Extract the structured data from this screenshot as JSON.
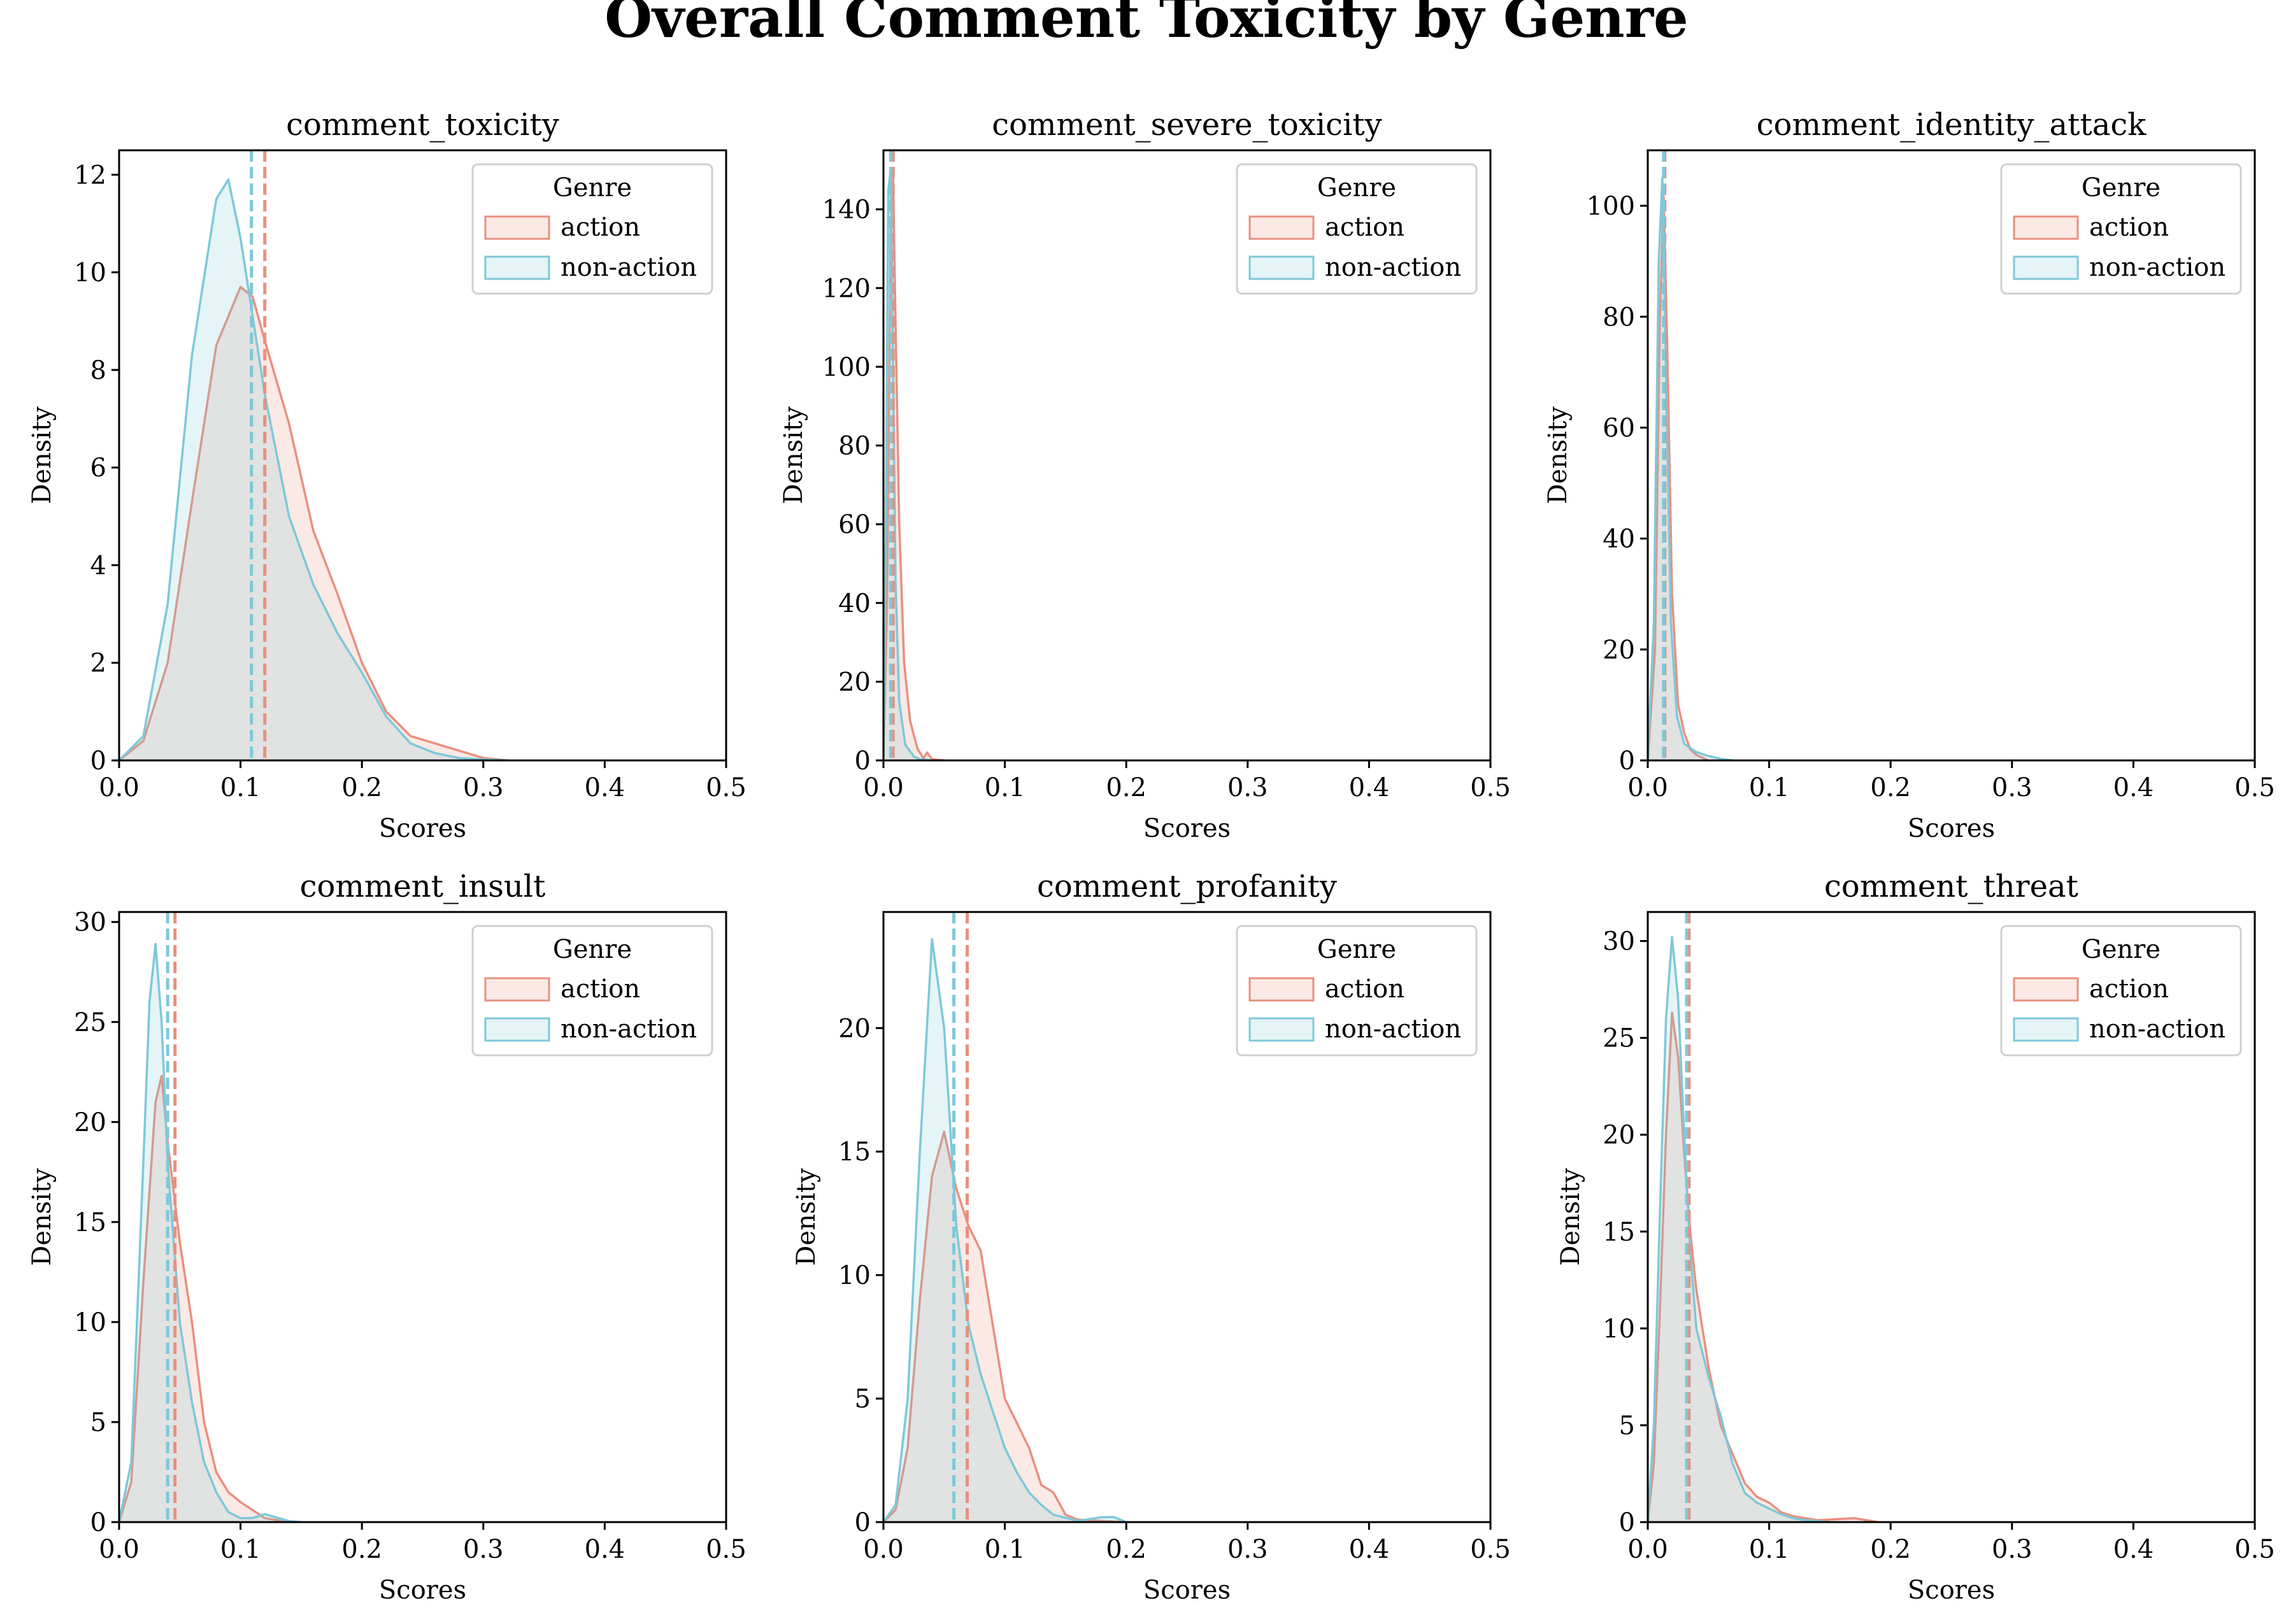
{
  "figure_title": "Overall Comment Toxicity by Genre",
  "colors": {
    "action": "#e8907f",
    "non_action": "#7ec8d9"
  },
  "chart_data": [
    {
      "type": "area",
      "title": "comment_toxicity",
      "xlabel": "Scores",
      "ylabel": "Density",
      "xlim": [
        0,
        0.5
      ],
      "ylim": [
        0,
        12.5
      ],
      "xticks": [
        0.0,
        0.1,
        0.2,
        0.3,
        0.4,
        0.5
      ],
      "xtick_labels": [
        "0.0",
        "0.1",
        "0.2",
        "0.3",
        "0.4",
        "0.5"
      ],
      "yticks": [
        0,
        2,
        4,
        6,
        8,
        10,
        12
      ],
      "ytick_labels": [
        "0",
        "2",
        "4",
        "6",
        "8",
        "10",
        "12"
      ],
      "legend": {
        "title": "Genre",
        "position": "top-right"
      },
      "series": [
        {
          "name": "action",
          "mean": 0.12,
          "x": [
            0,
            0.02,
            0.04,
            0.06,
            0.08,
            0.1,
            0.11,
            0.12,
            0.14,
            0.16,
            0.18,
            0.2,
            0.22,
            0.24,
            0.26,
            0.28,
            0.3,
            0.32
          ],
          "y": [
            0,
            0.4,
            2.0,
            5.3,
            8.5,
            9.7,
            9.5,
            8.6,
            6.9,
            4.7,
            3.4,
            2.0,
            1.0,
            0.5,
            0.35,
            0.2,
            0.05,
            0
          ]
        },
        {
          "name": "non-action",
          "mean": 0.109,
          "x": [
            0,
            0.02,
            0.04,
            0.06,
            0.08,
            0.09,
            0.1,
            0.12,
            0.14,
            0.16,
            0.18,
            0.2,
            0.22,
            0.24,
            0.26,
            0.28,
            0.3,
            0.32
          ],
          "y": [
            0,
            0.5,
            3.2,
            8.3,
            11.5,
            11.9,
            10.7,
            7.5,
            5.0,
            3.6,
            2.6,
            1.8,
            0.9,
            0.35,
            0.15,
            0.05,
            0.02,
            0
          ]
        }
      ]
    },
    {
      "type": "area",
      "title": "comment_severe_toxicity",
      "xlabel": "Scores",
      "ylabel": "Density",
      "xlim": [
        0,
        0.5
      ],
      "ylim": [
        0,
        155
      ],
      "xticks": [
        0.0,
        0.1,
        0.2,
        0.3,
        0.4,
        0.5
      ],
      "xtick_labels": [
        "0.0",
        "0.1",
        "0.2",
        "0.3",
        "0.4",
        "0.5"
      ],
      "yticks": [
        0,
        20,
        40,
        60,
        80,
        100,
        120,
        140
      ],
      "ytick_labels": [
        "0",
        "20",
        "40",
        "60",
        "80",
        "100",
        "120",
        "140"
      ],
      "legend": {
        "title": "Genre",
        "position": "top-right"
      },
      "series": [
        {
          "name": "action",
          "mean": 0.008,
          "x": [
            0,
            0.003,
            0.006,
            0.008,
            0.01,
            0.013,
            0.017,
            0.022,
            0.028,
            0.033,
            0.036,
            0.04,
            0.05
          ],
          "y": [
            0,
            40,
            135,
            148,
            110,
            60,
            25,
            10,
            3,
            0.5,
            2,
            0.3,
            0
          ]
        },
        {
          "name": "non-action",
          "mean": 0.006,
          "x": [
            0,
            0.002,
            0.004,
            0.006,
            0.008,
            0.01,
            0.013,
            0.018,
            0.025,
            0.03,
            0.04
          ],
          "y": [
            0,
            60,
            145,
            150,
            100,
            45,
            15,
            4,
            1,
            0.3,
            0
          ]
        }
      ]
    },
    {
      "type": "area",
      "title": "comment_identity_attack",
      "xlabel": "Scores",
      "ylabel": "Density",
      "xlim": [
        0,
        0.5
      ],
      "ylim": [
        0,
        110
      ],
      "xticks": [
        0.0,
        0.1,
        0.2,
        0.3,
        0.4,
        0.5
      ],
      "xtick_labels": [
        "0.0",
        "0.1",
        "0.2",
        "0.3",
        "0.4",
        "0.5"
      ],
      "yticks": [
        0,
        20,
        40,
        60,
        80,
        100
      ],
      "ytick_labels": [
        "0",
        "20",
        "40",
        "60",
        "80",
        "100"
      ],
      "legend": {
        "title": "Genre",
        "position": "top-right"
      },
      "series": [
        {
          "name": "action",
          "mean": 0.014,
          "x": [
            0,
            0.006,
            0.01,
            0.013,
            0.016,
            0.02,
            0.025,
            0.03,
            0.035,
            0.04,
            0.045,
            0.05
          ],
          "y": [
            0,
            20,
            80,
            102,
            75,
            30,
            10,
            5,
            2,
            1,
            0.5,
            0
          ]
        },
        {
          "name": "non-action",
          "mean": 0.013,
          "x": [
            0,
            0.005,
            0.009,
            0.012,
            0.015,
            0.019,
            0.024,
            0.03,
            0.04,
            0.05,
            0.06,
            0.07
          ],
          "y": [
            0,
            25,
            90,
            105,
            70,
            25,
            8,
            3,
            1.5,
            0.8,
            0.3,
            0
          ]
        }
      ]
    },
    {
      "type": "area",
      "title": "comment_insult",
      "xlabel": "Scores",
      "ylabel": "Density",
      "xlim": [
        0,
        0.5
      ],
      "ylim": [
        0,
        30.5
      ],
      "xticks": [
        0.0,
        0.1,
        0.2,
        0.3,
        0.4,
        0.5
      ],
      "xtick_labels": [
        "0.0",
        "0.1",
        "0.2",
        "0.3",
        "0.4",
        "0.5"
      ],
      "yticks": [
        0,
        5,
        10,
        15,
        20,
        25,
        30
      ],
      "ytick_labels": [
        "0",
        "5",
        "10",
        "15",
        "20",
        "25",
        "30"
      ],
      "legend": {
        "title": "Genre",
        "position": "top-right"
      },
      "series": [
        {
          "name": "action",
          "mean": 0.046,
          "x": [
            0,
            0.01,
            0.02,
            0.03,
            0.035,
            0.04,
            0.05,
            0.06,
            0.07,
            0.08,
            0.09,
            0.1,
            0.11,
            0.12,
            0.14
          ],
          "y": [
            0,
            2,
            12,
            21,
            22.3,
            19,
            14,
            10,
            5,
            2.5,
            1.5,
            1.0,
            0.6,
            0.2,
            0
          ]
        },
        {
          "name": "non-action",
          "mean": 0.04,
          "x": [
            0,
            0.01,
            0.02,
            0.025,
            0.03,
            0.035,
            0.04,
            0.05,
            0.06,
            0.07,
            0.08,
            0.09,
            0.1,
            0.11,
            0.12,
            0.14,
            0.15
          ],
          "y": [
            0,
            3,
            18,
            26,
            28.9,
            25,
            18,
            10,
            6,
            3,
            1.5,
            0.5,
            0.2,
            0.2,
            0.4,
            0.05,
            0
          ]
        }
      ]
    },
    {
      "type": "area",
      "title": "comment_profanity",
      "xlabel": "Scores",
      "ylabel": "Density",
      "xlim": [
        0,
        0.5
      ],
      "ylim": [
        0,
        24.7
      ],
      "xticks": [
        0.0,
        0.1,
        0.2,
        0.3,
        0.4,
        0.5
      ],
      "xtick_labels": [
        "0.0",
        "0.1",
        "0.2",
        "0.3",
        "0.4",
        "0.5"
      ],
      "yticks": [
        0,
        5,
        10,
        15,
        20
      ],
      "ytick_labels": [
        "0",
        "5",
        "10",
        "15",
        "20"
      ],
      "legend": {
        "title": "Genre",
        "position": "top-right"
      },
      "series": [
        {
          "name": "action",
          "mean": 0.069,
          "x": [
            0,
            0.01,
            0.02,
            0.03,
            0.04,
            0.05,
            0.06,
            0.07,
            0.08,
            0.09,
            0.1,
            0.11,
            0.12,
            0.13,
            0.14,
            0.15,
            0.16,
            0.18,
            0.2
          ],
          "y": [
            0,
            0.5,
            3,
            9,
            14,
            15.8,
            13.5,
            12,
            11,
            8,
            5,
            4,
            3,
            1.5,
            1.2,
            0.3,
            0.1,
            0.05,
            0
          ]
        },
        {
          "name": "non-action",
          "mean": 0.058,
          "x": [
            0,
            0.01,
            0.02,
            0.03,
            0.04,
            0.05,
            0.06,
            0.07,
            0.08,
            0.09,
            0.1,
            0.11,
            0.12,
            0.13,
            0.14,
            0.16,
            0.18,
            0.19,
            0.2
          ],
          "y": [
            0,
            0.7,
            5,
            15,
            23.6,
            20,
            12,
            8,
            6,
            4.5,
            3,
            2,
            1.2,
            0.7,
            0.3,
            0.05,
            0.2,
            0.2,
            0
          ]
        }
      ]
    },
    {
      "type": "area",
      "title": "comment_threat",
      "xlabel": "Scores",
      "ylabel": "Density",
      "xlim": [
        0,
        0.5
      ],
      "ylim": [
        0,
        31.5
      ],
      "xticks": [
        0.0,
        0.1,
        0.2,
        0.3,
        0.4,
        0.5
      ],
      "xtick_labels": [
        "0.0",
        "0.1",
        "0.2",
        "0.3",
        "0.4",
        "0.5"
      ],
      "yticks": [
        0,
        5,
        10,
        15,
        20,
        25,
        30
      ],
      "ytick_labels": [
        "0",
        "5",
        "10",
        "15",
        "20",
        "25",
        "30"
      ],
      "legend": {
        "title": "Genre",
        "position": "top-right"
      },
      "series": [
        {
          "name": "action",
          "mean": 0.034,
          "x": [
            0,
            0.005,
            0.01,
            0.015,
            0.02,
            0.025,
            0.03,
            0.035,
            0.04,
            0.05,
            0.06,
            0.07,
            0.08,
            0.09,
            0.1,
            0.11,
            0.12,
            0.14,
            0.17,
            0.19
          ],
          "y": [
            0,
            3,
            11,
            20,
            26.3,
            24,
            19,
            15,
            12,
            8,
            5,
            3.5,
            2,
            1.3,
            1.0,
            0.5,
            0.3,
            0.1,
            0.2,
            0
          ]
        },
        {
          "name": "non-action",
          "mean": 0.032,
          "x": [
            0,
            0.005,
            0.01,
            0.015,
            0.02,
            0.025,
            0.03,
            0.035,
            0.04,
            0.05,
            0.06,
            0.07,
            0.08,
            0.09,
            0.1,
            0.11,
            0.12,
            0.13,
            0.15
          ],
          "y": [
            0,
            5,
            16,
            26,
            30.2,
            27,
            20,
            14,
            10,
            7.5,
            5.5,
            3.0,
            1.5,
            1.0,
            0.7,
            0.4,
            0.2,
            0.1,
            0
          ]
        }
      ]
    }
  ]
}
